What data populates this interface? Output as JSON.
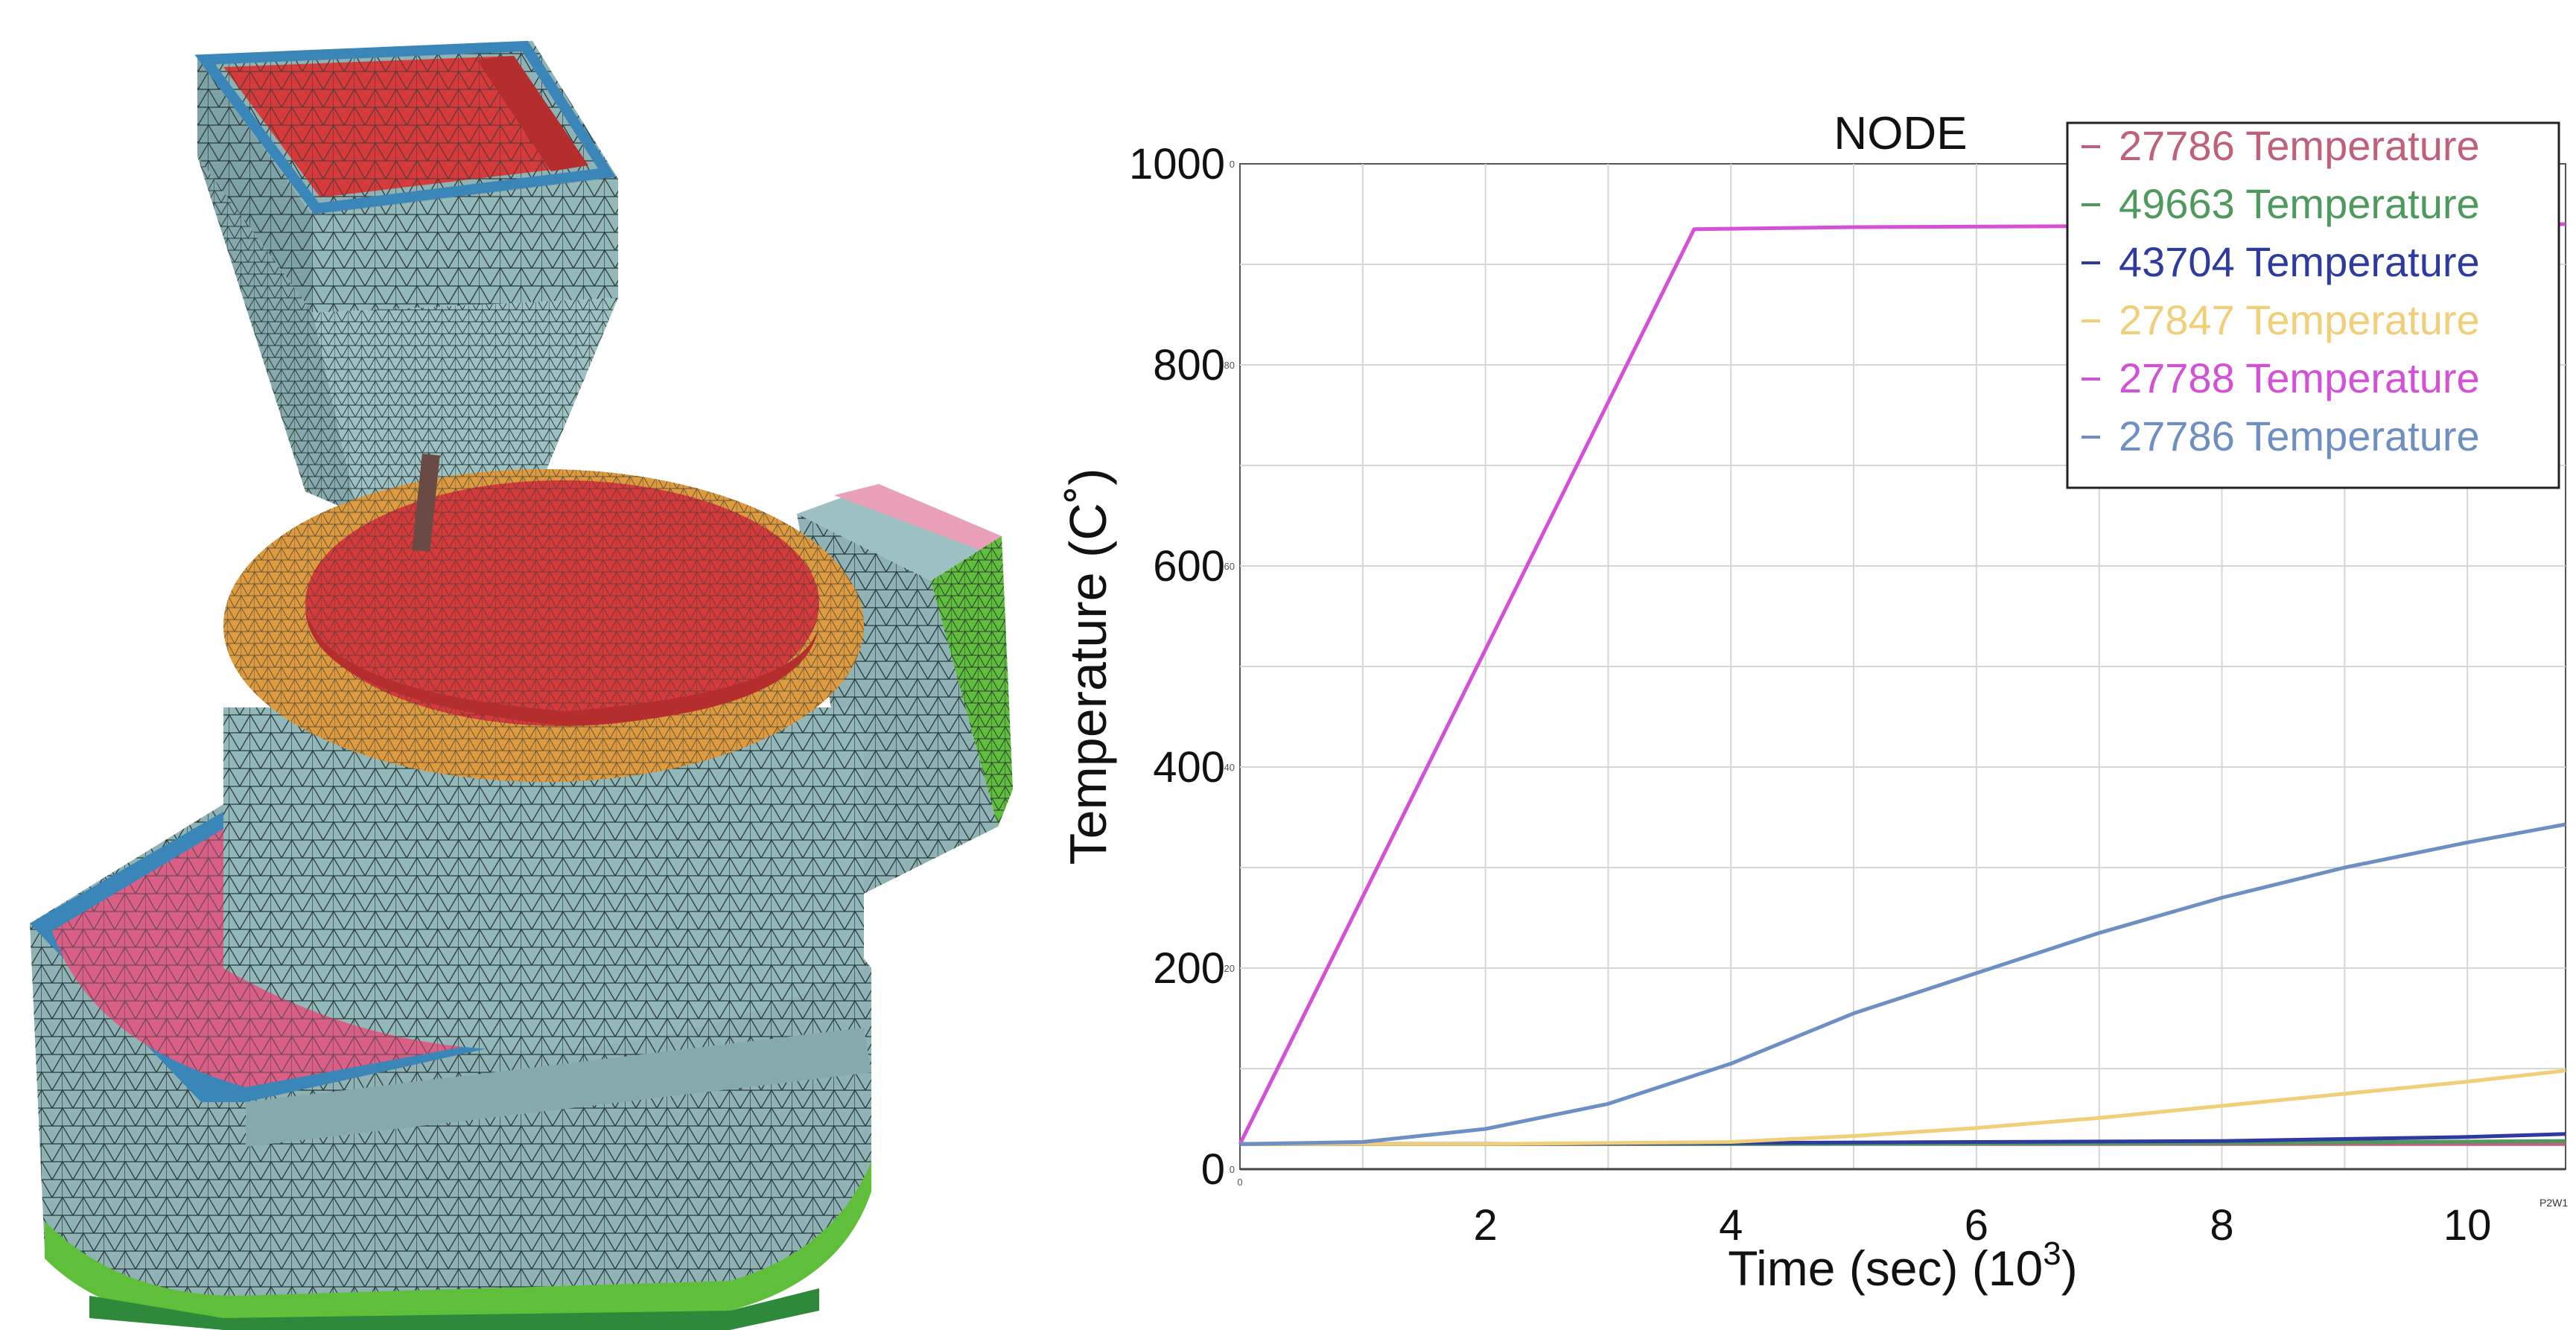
{
  "figure": {
    "left_panel": "finite element mesh model of casting assembly"
  },
  "chart_data": {
    "type": "line",
    "title": "NODE",
    "xlabel": "Time (sec) (10",
    "xlabel_sup": "3",
    "xlabel_end": ")",
    "ylabel": "Temperature (C˚)",
    "xlim": [
      0,
      10.8
    ],
    "ylim": [
      0,
      1000
    ],
    "xticks": [
      2,
      4,
      6,
      8,
      10
    ],
    "yticks": [
      0,
      200,
      400,
      600,
      800,
      1000
    ],
    "minor_ytick_labels": [
      "0",
      "20",
      "40",
      "60",
      "80",
      "0"
    ],
    "minor_xtick_label": "0",
    "corner_code": "P2W1",
    "grid": true,
    "legend_position": "top-right",
    "series": [
      {
        "name": "27786 Temperature",
        "color": "#c0607a",
        "x": [
          0,
          10.8
        ],
        "y": [
          25,
          25
        ]
      },
      {
        "name": "49663 Temperature",
        "color": "#4e9a5e",
        "x": [
          0,
          4,
          8,
          10.8
        ],
        "y": [
          25,
          25,
          26,
          28
        ]
      },
      {
        "name": "43704 Temperature",
        "color": "#2e3aa0",
        "x": [
          0,
          2,
          4,
          6,
          8,
          10,
          10.8
        ],
        "y": [
          25,
          25,
          26,
          27,
          28,
          32,
          35
        ]
      },
      {
        "name": "27847 Temperature",
        "color": "#f0cf78",
        "x": [
          0,
          2,
          4,
          5,
          6,
          7,
          8,
          9,
          10,
          10.8
        ],
        "y": [
          25,
          25,
          27,
          33,
          41,
          51,
          63,
          75,
          87,
          98
        ]
      },
      {
        "name": "27788 Temperature",
        "color": "#d450d8",
        "x": [
          0,
          3.7,
          5,
          7,
          9,
          10.8
        ],
        "y": [
          25,
          935,
          937,
          938,
          939,
          940
        ]
      },
      {
        "name": "27786 Temperature",
        "color": "#6e8fc4",
        "x": [
          0,
          1,
          2,
          3,
          4,
          5,
          6,
          7,
          8,
          9,
          10,
          10.8
        ],
        "y": [
          25,
          27,
          40,
          65,
          105,
          155,
          195,
          235,
          270,
          300,
          325,
          343
        ]
      }
    ]
  }
}
